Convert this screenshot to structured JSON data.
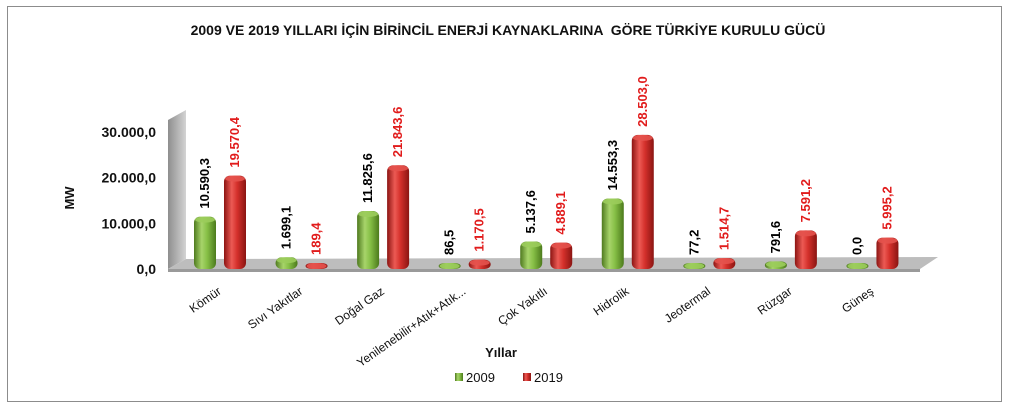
{
  "chart_data": {
    "type": "bar",
    "title": "2009 VE 2019 YILLARI İÇİN BİRİNCİL ENERJİ KAYNAKLARINA  GÖRE TÜRKİYE KURULU GÜCÜ",
    "xlabel": "Yıllar",
    "ylabel": "MW",
    "ylim": [
      0,
      30000
    ],
    "y_ticks": [
      "0,0",
      "10.000,0",
      "20.000,0",
      "30.000,0"
    ],
    "y_tick_values": [
      0,
      10000,
      20000,
      30000
    ],
    "categories": [
      "Kömür",
      "Sıvı Yakıtlar",
      "Doğal Gaz",
      "Yenilenebilir+Atık+Atık...",
      "Çok Yakıtlı",
      "Hidrolik",
      "Jeotermal",
      "Rüzgar",
      "Güneş"
    ],
    "series": [
      {
        "name": "2009",
        "color": "#7fb542",
        "values": [
          10590.3,
          1699.1,
          11825.6,
          86.5,
          5137.6,
          14553.3,
          77.2,
          791.6,
          0.0
        ],
        "labels": [
          "10.590,3",
          "1.699,1",
          "11.825,6",
          "86,5",
          "5.137,6",
          "14.553,3",
          "77,2",
          "791,6",
          "0,0"
        ]
      },
      {
        "name": "2019",
        "color": "#d9302c",
        "values": [
          19570.4,
          189.4,
          21843.6,
          1170.5,
          4889.1,
          28503.0,
          1514.7,
          7591.2,
          5995.2
        ],
        "labels": [
          "19.570,4",
          "189,4",
          "21.843,6",
          "1.170,5",
          "4.889,1",
          "28.503,0",
          "1.514,7",
          "7.591,2",
          "5.995,2"
        ]
      }
    ],
    "grid": false,
    "legend_position": "bottom"
  }
}
